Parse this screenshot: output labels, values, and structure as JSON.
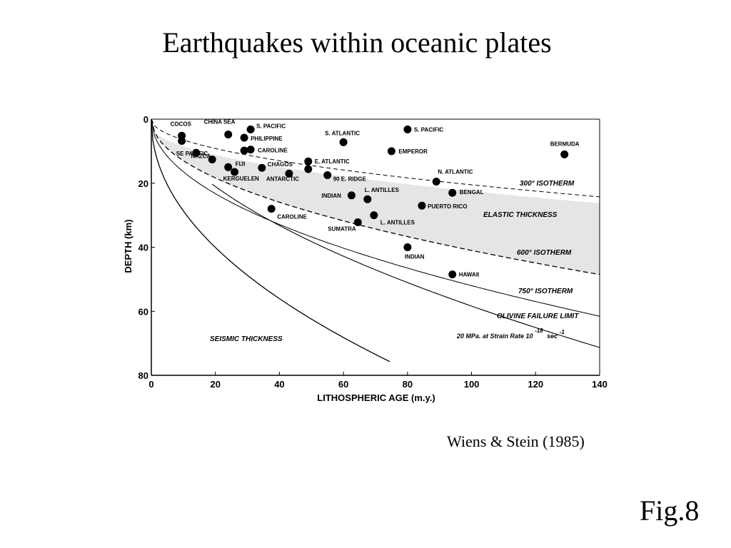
{
  "slide": {
    "title": "Earthquakes within oceanic plates",
    "citation": "Wiens & Stein (1985)",
    "fig_label": "Fig.8"
  },
  "chart_data": {
    "type": "scatter",
    "xlabel": "LITHOSPHERIC AGE (m.y.)",
    "ylabel": "DEPTH (km)",
    "xlim": [
      0,
      140
    ],
    "ylim": [
      0,
      80
    ],
    "y_inverted": true,
    "x_ticks": [
      0,
      20,
      40,
      60,
      80,
      100,
      120,
      140
    ],
    "y_ticks": [
      0,
      20,
      40,
      60,
      80
    ],
    "grid": false,
    "points": [
      {
        "label": "COCOS",
        "x": 9.5,
        "y": 5.2
      },
      {
        "label": "",
        "x": 9.5,
        "y": 6.8
      },
      {
        "label": "CHINA SEA",
        "x": 24,
        "y": 4.8
      },
      {
        "label": "S. PACIFIC",
        "x": 31,
        "y": 3.2
      },
      {
        "label": "PHILIPPINE",
        "x": 29,
        "y": 5.8
      },
      {
        "label": "CAROLINE",
        "x": 31,
        "y": 9.5
      },
      {
        "label": "",
        "x": 29,
        "y": 9.8
      },
      {
        "label": "SE PACIFIC",
        "x": 14,
        "y": 10.5
      },
      {
        "label": "NAZCA",
        "x": 19,
        "y": 12.6
      },
      {
        "label": "FIJI",
        "x": 24,
        "y": 15.0
      },
      {
        "label": "KERGUELEN",
        "x": 26,
        "y": 16.5
      },
      {
        "label": "CHAGOS",
        "x": 34.5,
        "y": 15.2
      },
      {
        "label": "ANTARCTIC",
        "x": 43,
        "y": 17.0
      },
      {
        "label": "E. ATLANTIC",
        "x": 49,
        "y": 13.2
      },
      {
        "label": "",
        "x": 49,
        "y": 15.6
      },
      {
        "label": "S. ATLANTIC",
        "x": 60,
        "y": 7.2
      },
      {
        "label": "90 E. RIDGE",
        "x": 55,
        "y": 17.5
      },
      {
        "label": "INDIAN",
        "x": 62.5,
        "y": 23.8
      },
      {
        "label": "L. ANTILLES",
        "x": 67.5,
        "y": 25.0
      },
      {
        "label": "L. ANTILLES",
        "x": 69.5,
        "y": 30.0
      },
      {
        "label": "SUMATRA",
        "x": 64.5,
        "y": 32.2
      },
      {
        "label": "CAROLINE",
        "x": 37.5,
        "y": 28.0
      },
      {
        "label": "INDIAN",
        "x": 80,
        "y": 40.0
      },
      {
        "label": "S. PACIFIC",
        "x": 80,
        "y": 3.2
      },
      {
        "label": "EMPEROR",
        "x": 75,
        "y": 10.0
      },
      {
        "label": "N. ATLANTIC",
        "x": 89,
        "y": 19.5
      },
      {
        "label": "BENGAL",
        "x": 94,
        "y": 23.0
      },
      {
        "label": "PUERTO RICO",
        "x": 84.5,
        "y": 27.0
      },
      {
        "label": "HAWAII",
        "x": 94,
        "y": 48.5
      },
      {
        "label": "BERMUDA",
        "x": 129,
        "y": 11.0
      }
    ],
    "curves": [
      {
        "label": "300° ISOTHERM",
        "style": "dashed"
      },
      {
        "label": "600° ISOTHERM",
        "style": "dashed"
      },
      {
        "label": "750° ISOTHERM",
        "style": "solid"
      },
      {
        "label": "OLIVINE FAILURE LIMIT",
        "style": "solid"
      },
      {
        "label": "SEISMIC THICKNESS",
        "style": "solid"
      }
    ],
    "shaded_region_label": "ELASTIC THICKNESS",
    "annotation": "20 MPa. at Strain Rate 10",
    "annotation_exponent": "-18",
    "annotation_unit": "sec",
    "annotation_unit_exponent": "-1"
  }
}
